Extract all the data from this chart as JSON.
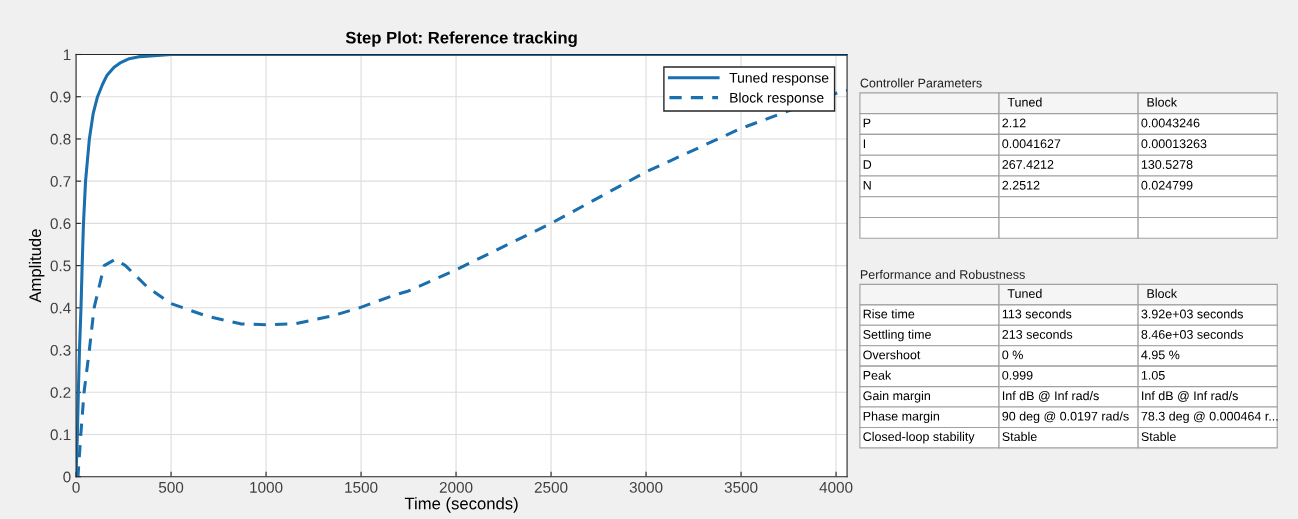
{
  "chart_data": [
    {
      "type": "line",
      "title": "Step Plot: Reference tracking",
      "xlabel": "Time (seconds)",
      "ylabel": "Amplitude",
      "series": [
        {
          "name": "Tuned response",
          "color": "#1a6fae",
          "line_style": "solid",
          "x": [
            0,
            3,
            7,
            12,
            18,
            26,
            32,
            39,
            50,
            70,
            90,
            113,
            140,
            162,
            200,
            232,
            280,
            338,
            500,
            4058
          ],
          "values": [
            0,
            0.05,
            0.1,
            0.2,
            0.3,
            0.4,
            0.5,
            0.6,
            0.7,
            0.8,
            0.86,
            0.9,
            0.93,
            0.95,
            0.97,
            0.98,
            0.99,
            0.995,
            1,
            1
          ]
        },
        {
          "name": "Block response",
          "color": "#1a6fae",
          "line_style": "dashed",
          "x": [
            0,
            10,
            25,
            42,
            70,
            95,
            148,
            206,
            260,
            373,
            500,
            690,
            866,
            1007,
            1148,
            1341,
            1491,
            1676,
            1750,
            2000,
            2500,
            3000,
            3500,
            4000,
            4058
          ],
          "values": [
            0,
            0,
            0.1,
            0.2,
            0.3,
            0.4,
            0.5,
            0.515,
            0.5,
            0.45,
            0.41,
            0.38,
            0.362,
            0.36,
            0.362,
            0.38,
            0.4,
            0.43,
            0.44,
            0.49,
            0.6,
            0.722,
            0.825,
            0.908,
            0.915
          ]
        }
      ],
      "xlim": [
        0,
        4058
      ],
      "ylim": [
        0,
        1
      ],
      "xticks": [
        0,
        500,
        1000,
        1500,
        2000,
        2500,
        3000,
        3500,
        4000
      ],
      "yticks": [
        0,
        0.1,
        0.2,
        0.3,
        0.4,
        0.5,
        0.6,
        0.7,
        0.8,
        0.9,
        1
      ],
      "grid": true,
      "legend": "top right",
      "marker": "none"
    },
    {
      "type": "other",
      "title": "Controller Parameters",
      "categories": [
        null,
        "Tuned",
        "Block"
      ],
      "y_categories": [
        "P",
        "I",
        "D",
        "N",
        null,
        null
      ],
      "cell_labels": [
        [
          "2.12",
          "0.0043246"
        ],
        [
          "0.0041627",
          "0.00013263"
        ],
        [
          "267.4212",
          "130.5278"
        ],
        [
          "2.2512",
          "0.024799"
        ],
        [
          null,
          null
        ],
        [
          null,
          null
        ]
      ]
    },
    {
      "type": "other",
      "title": "Performance and Robustness",
      "categories": [
        null,
        "Tuned",
        "Block"
      ],
      "y_categories": [
        "Rise time",
        "Settling time",
        "Overshoot",
        "Peak",
        "Gain margin",
        "Phase margin",
        "Closed-loop stability"
      ],
      "cell_labels": [
        [
          "113 seconds",
          "3.92e+03 seconds"
        ],
        [
          "213 seconds",
          "8.46e+03 seconds"
        ],
        [
          "0 %",
          "4.95 %"
        ],
        [
          "0.999",
          "1.05"
        ],
        [
          "Inf dB @ Inf rad/s",
          "Inf dB @ Inf rad/s"
        ],
        [
          "90 deg @ 0.0197 rad/s",
          "78.3 deg @ 0.000464 r..."
        ],
        [
          "Stable",
          "Stable"
        ]
      ]
    }
  ]
}
